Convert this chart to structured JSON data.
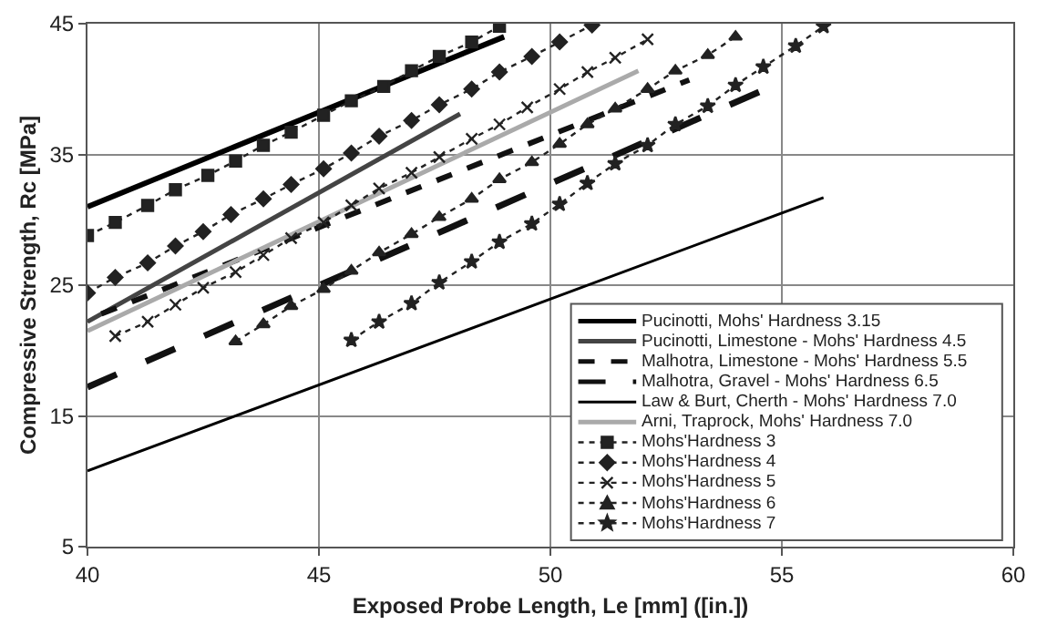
{
  "chart_data": {
    "type": "line",
    "xlabel": "Exposed Probe Length, Le [mm] ([in.])",
    "ylabel": "Compressive Strength, Rc [MPa]",
    "xlim": [
      40,
      60
    ],
    "xticks": [
      40,
      45,
      50,
      55,
      60
    ],
    "ylim": [
      5,
      45
    ],
    "yticks": [
      5,
      15,
      25,
      35,
      45
    ],
    "grid": true,
    "legend": "bottom right",
    "series": [
      {
        "name": "Pucinotti, Mohs' Hardness 3.15",
        "color": "#000000",
        "line_style": "solid",
        "marker": "none",
        "x": [
          40,
          49.0
        ],
        "values": [
          31.0,
          44.0
        ]
      },
      {
        "name": "Pucinotti, Limestone - Mohs' Hardness 4.5",
        "color": "#444444",
        "line_style": "solid",
        "marker": "none",
        "x": [
          40,
          48.05
        ],
        "values": [
          22.2,
          38.1
        ]
      },
      {
        "name": "Malhotra, Limestone - Mohs' Hardness 5.5",
        "color": "#111111",
        "line_style": "dashed",
        "marker": "none",
        "x": [
          40.3,
          53.0
        ],
        "values": [
          22.8,
          40.7
        ]
      },
      {
        "name": "Malhotra, Gravel - Mohs' Hardness 6.5",
        "color": "#111111",
        "line_style": "dashed",
        "marker": "none",
        "x": [
          40.0,
          55.1
        ],
        "values": [
          17.2,
          40.7
        ]
      },
      {
        "name": "Law & Burt, Cherth - Mohs' Hardness 7.0",
        "color": "#000000",
        "line_style": "solid",
        "marker": "none",
        "x": [
          40,
          55.9
        ],
        "values": [
          10.8,
          31.7
        ]
      },
      {
        "name": "Arni, Traprock, Mohs' Hardness 7.0",
        "color": "#aaaaaa",
        "line_style": "solid",
        "marker": "none",
        "x": [
          40,
          51.9
        ],
        "values": [
          21.5,
          41.4
        ]
      },
      {
        "name": "Mohs'Hardness 3",
        "color": "#222222",
        "line_style": "dotted",
        "marker": "square",
        "x": [
          40.0,
          40.6,
          41.3,
          41.9,
          42.6,
          43.2,
          43.8,
          44.4,
          45.1,
          45.7,
          46.4,
          47.0,
          47.6,
          48.3,
          48.9
        ],
        "values": [
          28.8,
          29.8,
          31.1,
          32.3,
          33.4,
          34.5,
          35.7,
          36.7,
          38.0,
          39.1,
          40.2,
          41.4,
          42.5,
          43.6,
          44.8
        ]
      },
      {
        "name": "Mohs'Hardness 4",
        "color": "#222222",
        "line_style": "dotted",
        "marker": "diamond",
        "x": [
          40.0,
          40.6,
          41.3,
          41.9,
          42.5,
          43.1,
          43.8,
          44.4,
          45.1,
          45.7,
          46.3,
          47.0,
          47.6,
          48.3,
          48.9,
          49.6,
          50.2,
          50.9
        ],
        "values": [
          24.4,
          25.6,
          26.7,
          28.0,
          29.1,
          30.4,
          31.6,
          32.7,
          33.9,
          35.1,
          36.4,
          37.6,
          38.8,
          40.0,
          41.3,
          42.5,
          43.6,
          44.9
        ]
      },
      {
        "name": "Mohs'Hardness 5",
        "color": "#222222",
        "line_style": "dotted",
        "marker": "cross",
        "x": [
          40.6,
          41.3,
          41.9,
          42.5,
          43.2,
          43.8,
          44.4,
          45.1,
          45.7,
          46.3,
          47.0,
          47.6,
          48.3,
          48.9,
          49.5,
          50.2,
          50.8,
          51.4,
          52.1
        ],
        "values": [
          21.1,
          22.2,
          23.5,
          24.8,
          26.0,
          27.3,
          28.6,
          29.8,
          31.1,
          32.4,
          33.6,
          34.8,
          36.2,
          37.3,
          38.6,
          40.0,
          41.3,
          42.4,
          43.8
        ]
      },
      {
        "name": "Mohs'Hardness 6",
        "color": "#222222",
        "line_style": "dotted",
        "marker": "triangle",
        "x": [
          43.2,
          43.8,
          44.4,
          45.1,
          45.7,
          46.3,
          47.0,
          47.6,
          48.3,
          48.9,
          49.6,
          50.2,
          50.8,
          51.4,
          52.1,
          52.7,
          53.4,
          54.0
        ],
        "values": [
          20.7,
          22.0,
          23.4,
          24.7,
          26.1,
          27.5,
          28.9,
          30.2,
          31.6,
          33.1,
          34.4,
          35.8,
          37.3,
          38.5,
          40.0,
          41.4,
          42.6,
          44.0
        ]
      },
      {
        "name": "Mohs'Hardness 7",
        "color": "#222222",
        "line_style": "dotted",
        "marker": "star",
        "x": [
          45.7,
          46.3,
          47.0,
          47.6,
          48.3,
          48.9,
          49.6,
          50.2,
          50.8,
          51.4,
          52.1,
          52.7,
          53.4,
          54.0,
          54.6,
          55.3,
          55.9
        ],
        "values": [
          20.8,
          22.2,
          23.6,
          25.2,
          26.8,
          28.3,
          29.7,
          31.2,
          32.8,
          34.3,
          35.7,
          37.3,
          38.7,
          40.3,
          41.7,
          43.3,
          44.8
        ]
      }
    ]
  }
}
